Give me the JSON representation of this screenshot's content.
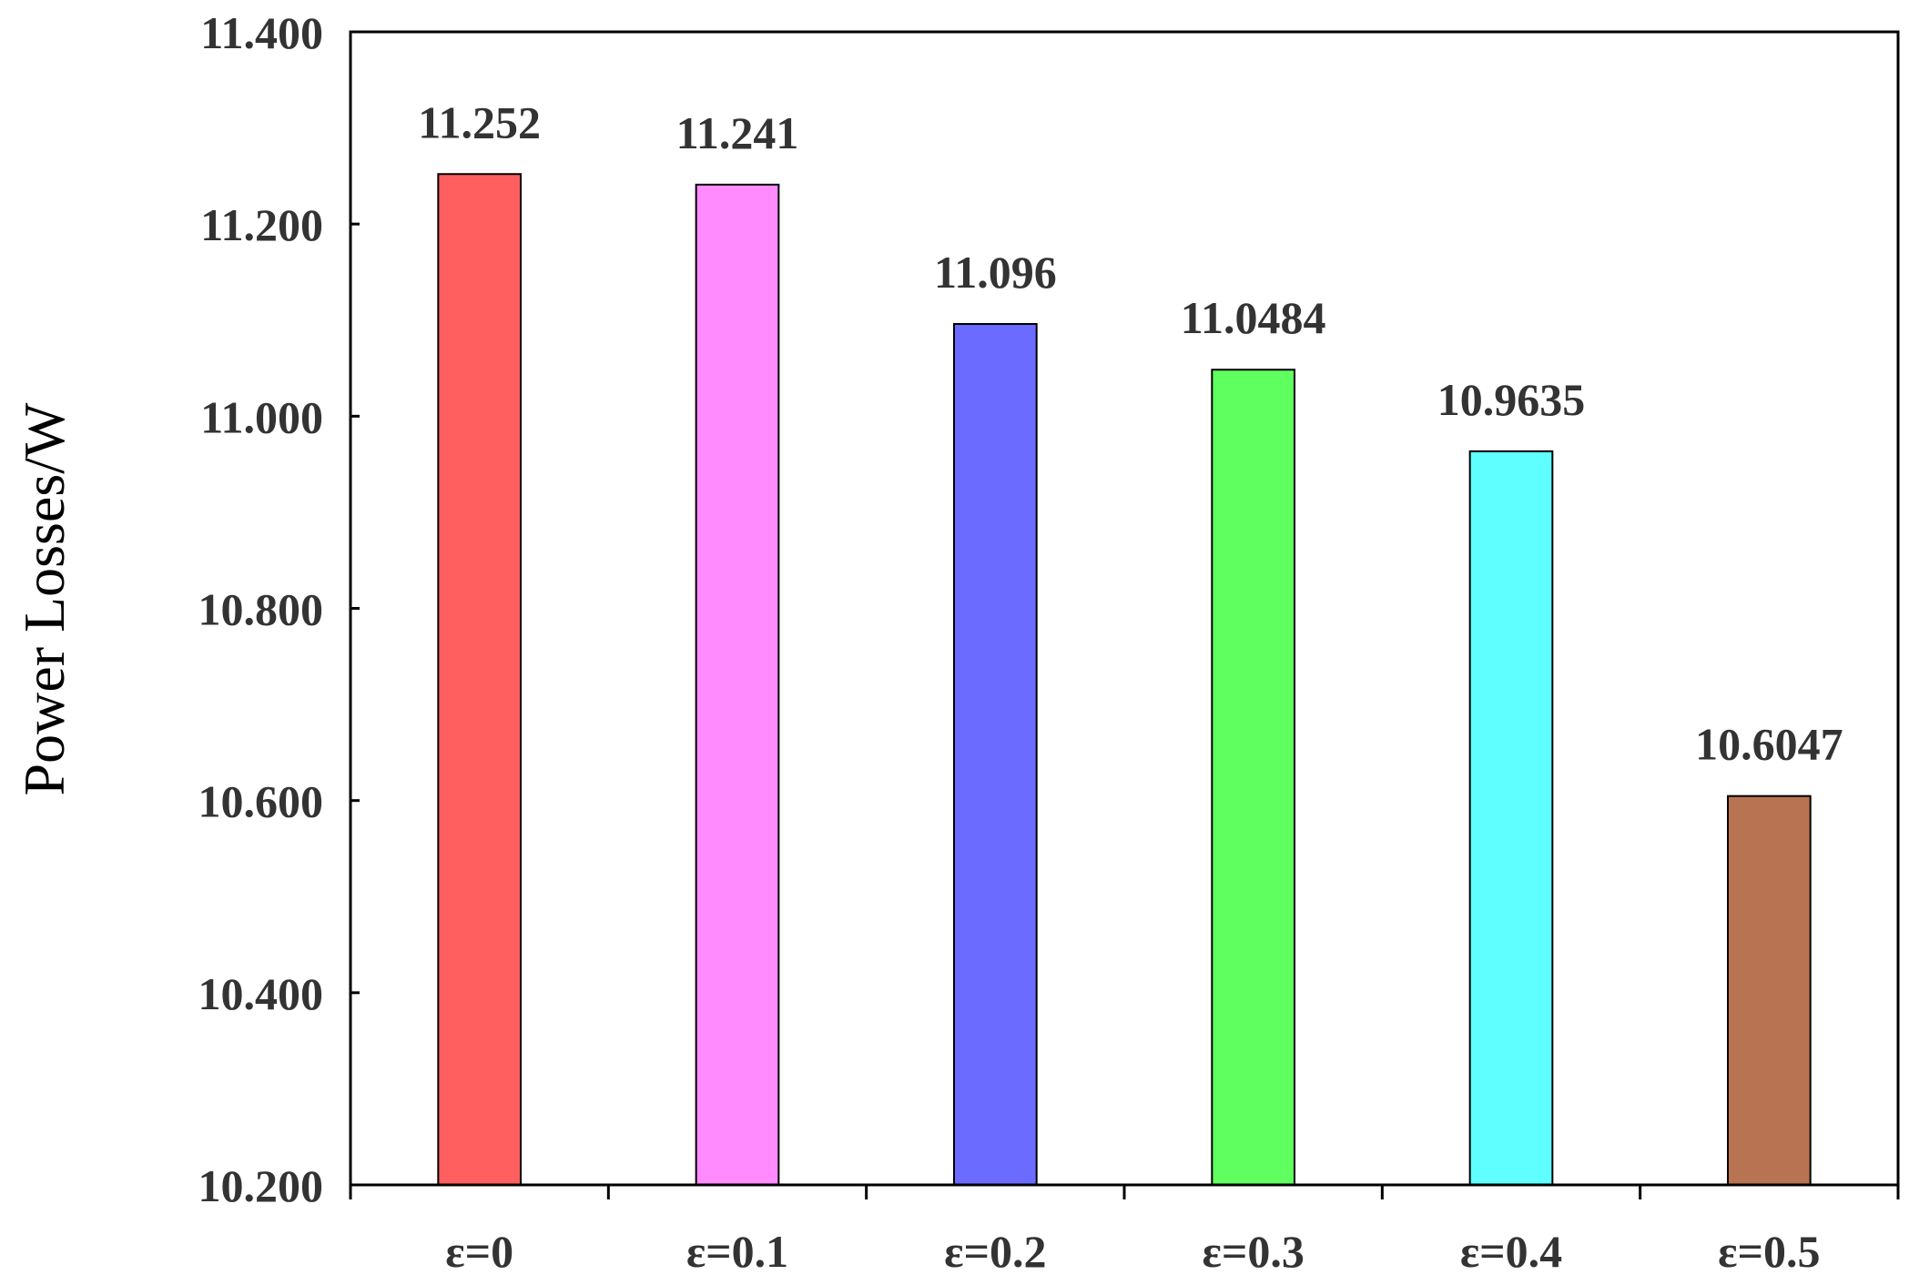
{
  "chart_data": {
    "type": "bar",
    "title": "",
    "xlabel": "",
    "ylabel": "Power Losses/W",
    "categories": [
      "ε=0",
      "ε=0.1",
      "ε=0.2",
      "ε=0.3",
      "ε=0.4",
      "ε=0.5"
    ],
    "values": [
      11.252,
      11.241,
      11.096,
      11.0484,
      10.9635,
      10.6047
    ],
    "data_labels": [
      "11.252",
      "11.241",
      "11.096",
      "11.0484",
      "10.9635",
      "10.6047"
    ],
    "bar_colors": [
      "#FF5F5F",
      "#FF8BFF",
      "#6B6BFF",
      "#5FFF5F",
      "#5FFFFF",
      "#B87352"
    ],
    "ylim": [
      10.2,
      11.4
    ],
    "yticks": [
      10.2,
      10.4,
      10.6,
      10.8,
      11.0,
      11.2,
      11.4
    ],
    "ytick_labels": [
      "10.200",
      "10.400",
      "10.600",
      "10.800",
      "11.000",
      "11.200",
      "11.400"
    ],
    "grid": false,
    "legend": "none"
  }
}
